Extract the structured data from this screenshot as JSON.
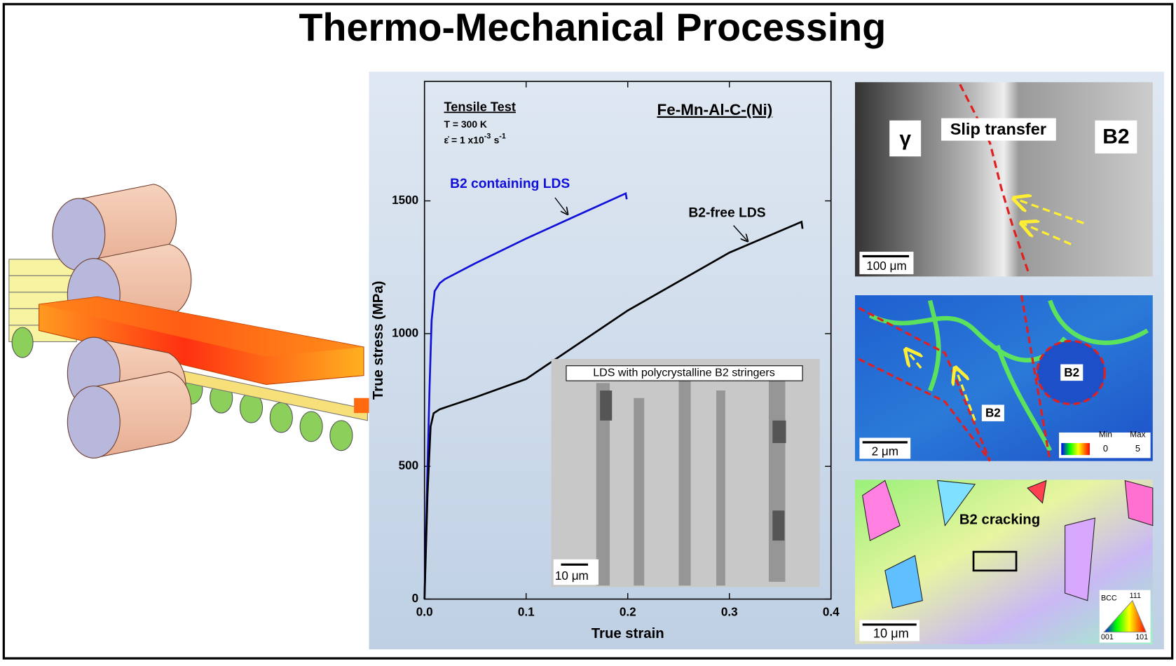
{
  "title": "Thermo-Mechanical Processing",
  "chart_data": {
    "type": "line",
    "xlabel": "True strain",
    "ylabel": "True stress (MPa)",
    "xlim": [
      0,
      0.4
    ],
    "ylim": [
      0,
      1950
    ],
    "xticks": [
      {
        "value": 0,
        "label": "0.0"
      },
      0.1,
      0.2,
      0.3,
      0.4
    ],
    "yticks": [
      0,
      500,
      1000,
      1500
    ],
    "annotations": [
      "Tensile Test",
      "T = 300 K",
      "ε̇ = 1 x10",
      "-3",
      "s",
      "-1",
      "Fe-Mn-Al-C-(Ni)"
    ],
    "series": [
      {
        "name": "B2 containing LDS",
        "color": "#1010d8",
        "x": [
          0,
          0.003,
          0.005,
          0.007,
          0.01,
          0.015,
          0.02,
          0.05,
          0.1,
          0.15,
          0.198,
          0.199
        ],
        "values": [
          0,
          500,
          800,
          1050,
          1160,
          1190,
          1205,
          1265,
          1358,
          1445,
          1528,
          1506
        ]
      },
      {
        "name": "B2-free LDS",
        "color": "#000000",
        "x": [
          0,
          0.003,
          0.006,
          0.009,
          0.015,
          0.05,
          0.1,
          0.2,
          0.3,
          0.371,
          0.372
        ],
        "values": [
          0,
          400,
          650,
          700,
          715,
          760,
          829,
          1087,
          1305,
          1421,
          1395
        ]
      }
    ],
    "inset": {
      "caption": "LDS with polycrystalline B2 stringers",
      "scale": "10 μm"
    }
  },
  "panels": [
    {
      "labels": [
        "γ",
        "Slip transfer",
        "B2",
        "100 μm"
      ]
    },
    {
      "labels": [
        "B2",
        "B2",
        "2 μm",
        "Min",
        "Max",
        "0",
        "5"
      ]
    },
    {
      "labels": [
        "B2 cracking",
        "10 μm",
        "BCC",
        "111",
        "001",
        "101"
      ]
    }
  ]
}
